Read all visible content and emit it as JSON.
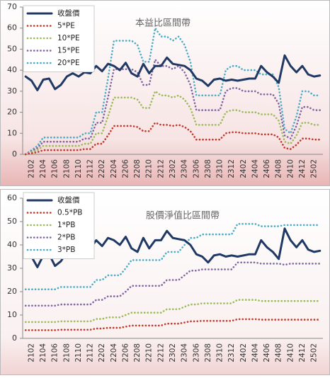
{
  "chart_data": [
    {
      "type": "line",
      "title": "本益比區間帶",
      "grid": false,
      "categories": [
        null,
        "2102",
        null,
        "2104",
        null,
        "2106",
        null,
        "2108",
        null,
        "2110",
        null,
        "2112",
        null,
        "2202",
        null,
        "2204",
        null,
        "2206",
        null,
        "2208",
        null,
        "2210",
        null,
        "2212",
        null,
        "2302",
        null,
        "2304",
        null,
        "2306",
        null,
        "2308",
        null,
        "2310",
        null,
        "2312",
        null,
        "2402",
        null,
        "2404",
        null,
        "2406",
        null,
        "2408",
        null,
        "2410",
        null,
        "2412",
        null,
        "2502",
        null
      ],
      "ylim": [
        0,
        70
      ],
      "yticks": [
        0,
        10,
        20,
        30,
        40,
        50,
        60,
        70
      ],
      "series": [
        {
          "name": "收盤價",
          "color": "#1f3864",
          "values": [
            37,
            35,
            30.5,
            35.5,
            36,
            31,
            33,
            37,
            38.5,
            37,
            39,
            38.5,
            42,
            39.5,
            43,
            42,
            40,
            43.5,
            38.5,
            37,
            43,
            38.5,
            42,
            42,
            46,
            43,
            42.5,
            42,
            40,
            36,
            35,
            32.5,
            35.5,
            36,
            35,
            35.5,
            35,
            35.5,
            36,
            36,
            42,
            39,
            37,
            34,
            47,
            42,
            39,
            42,
            38,
            37,
            37.5
          ]
        },
        {
          "name": "5*PE",
          "color": "#c0392b",
          "values": [
            0,
            0.5,
            1,
            2,
            2,
            2,
            2,
            2,
            2,
            2,
            2.5,
            2.5,
            5,
            5,
            9,
            13.5,
            13.5,
            13.5,
            13.5,
            13,
            11,
            11,
            15,
            14,
            14,
            13.5,
            14,
            13,
            11,
            7,
            7,
            7,
            7,
            7,
            10,
            10.5,
            10.5,
            10,
            10,
            10,
            9.5,
            9.5,
            9.5,
            8,
            3,
            2.5,
            4.5,
            7.5,
            7.5,
            7,
            7
          ]
        },
        {
          "name": "10*PE",
          "color": "#9bbb59",
          "values": [
            0,
            1,
            2,
            4,
            4,
            4,
            4,
            4,
            4,
            4,
            5,
            5,
            10,
            10,
            18,
            27,
            27,
            27,
            27,
            26,
            22,
            22,
            30,
            28,
            28,
            27,
            28,
            26,
            22,
            14,
            14,
            14,
            14,
            14,
            20,
            21,
            21,
            20,
            20,
            20,
            19,
            19,
            19,
            16,
            6,
            5,
            9,
            15,
            15,
            14,
            14
          ]
        },
        {
          "name": "15*PE",
          "color": "#8064a2",
          "values": [
            0,
            1.5,
            3,
            6,
            6,
            6,
            6,
            6,
            6,
            6,
            7.5,
            7.5,
            15,
            15,
            27,
            40.5,
            40.5,
            40.5,
            40.5,
            39,
            33,
            33,
            45,
            42,
            42,
            40.5,
            42,
            39,
            33,
            21,
            21,
            21,
            21,
            21,
            30,
            31.5,
            31.5,
            30,
            30,
            30,
            28.5,
            28.5,
            28.5,
            24,
            9,
            7.5,
            13.5,
            22.5,
            22.5,
            21,
            21
          ]
        },
        {
          "name": "20*PE",
          "color": "#4bacc6",
          "values": [
            0,
            2,
            4,
            8,
            8,
            8,
            8,
            8,
            8,
            8,
            10,
            10,
            20,
            20,
            36,
            54,
            54,
            54,
            54,
            52,
            44,
            44,
            60,
            56,
            56,
            54,
            56,
            52,
            44,
            28,
            28,
            28,
            28,
            28,
            40,
            42,
            42,
            40,
            40,
            40,
            38,
            38,
            38,
            32,
            12,
            10,
            18,
            30,
            30,
            28,
            28
          ]
        }
      ]
    },
    {
      "type": "line",
      "title": "股價淨值比區間帶",
      "grid": false,
      "categories": [
        null,
        "2102",
        null,
        "2104",
        null,
        "2106",
        null,
        "2108",
        null,
        "2110",
        null,
        "2112",
        null,
        "2202",
        null,
        "2204",
        null,
        "2206",
        null,
        "2208",
        null,
        "2210",
        null,
        "2212",
        null,
        "2302",
        null,
        "2304",
        null,
        "2306",
        null,
        "2308",
        null,
        "2310",
        null,
        "2312",
        null,
        "2402",
        null,
        "2404",
        null,
        "2406",
        null,
        "2408",
        null,
        "2410",
        null,
        "2412",
        null,
        "2502",
        null
      ],
      "ylim": [
        0,
        60
      ],
      "yticks": [
        0,
        10,
        20,
        30,
        40,
        50,
        60
      ],
      "series": [
        {
          "name": "收盤價",
          "color": "#1f3864",
          "values": [
            37,
            35,
            30.5,
            35.5,
            36,
            31,
            33,
            37,
            38.5,
            37,
            39,
            38.5,
            42,
            39.5,
            43,
            42,
            40,
            43.5,
            38.5,
            37,
            43,
            38.5,
            42,
            42,
            46,
            43,
            42.5,
            42,
            40,
            36,
            35,
            32.5,
            35.5,
            36,
            35,
            35.5,
            35,
            35.5,
            36,
            36,
            42,
            39,
            37,
            34,
            47,
            42,
            39,
            42,
            38,
            37,
            37.5
          ]
        },
        {
          "name": "0.5*PB",
          "color": "#c0392b",
          "values": [
            3.5,
            3.5,
            3.5,
            3.5,
            3.5,
            3.5,
            3.7,
            3.7,
            3.7,
            3.7,
            3.7,
            3.7,
            4.2,
            4.2,
            4.5,
            4.5,
            4.5,
            5,
            5.5,
            5.5,
            5.5,
            5.5,
            5.5,
            5.5,
            6.3,
            6.3,
            6.3,
            6.8,
            7.3,
            7.3,
            7.5,
            7.5,
            7.5,
            7.5,
            7.5,
            7.5,
            8.2,
            8.2,
            8.2,
            8.2,
            8,
            8,
            8,
            8,
            8,
            8,
            8,
            8,
            8,
            8,
            8
          ]
        },
        {
          "name": "1*PB",
          "color": "#9bbb59",
          "values": [
            7,
            7,
            7,
            7,
            7,
            7,
            7.3,
            7.3,
            7.3,
            7.3,
            7.3,
            7.3,
            8.3,
            8.3,
            9,
            9,
            9,
            10,
            11,
            11,
            11,
            11,
            11,
            11,
            12.5,
            12.5,
            12.5,
            13.5,
            14.5,
            14.5,
            15,
            15,
            15,
            15,
            15,
            15,
            16.5,
            16.5,
            16.5,
            16.5,
            16,
            16,
            16,
            16,
            16,
            16,
            16,
            16,
            16,
            16,
            16
          ]
        },
        {
          "name": "2*PB",
          "color": "#8064a2",
          "values": [
            14,
            14,
            14,
            14,
            14,
            14,
            14.5,
            14.5,
            14.5,
            14.5,
            14.5,
            14.5,
            16.5,
            16.5,
            18,
            18,
            18,
            20,
            22.5,
            22.5,
            22.5,
            22.5,
            22.5,
            22.5,
            25,
            25,
            25,
            27,
            29,
            29,
            29.5,
            29.5,
            29.5,
            29.5,
            29.5,
            29.5,
            32.5,
            32.5,
            32.5,
            32.5,
            32,
            32,
            32,
            32,
            31.5,
            32,
            32,
            32,
            32,
            32,
            32
          ]
        },
        {
          "name": "3*PB",
          "color": "#4bacc6",
          "values": [
            21,
            21,
            21,
            21,
            21,
            21,
            22,
            22,
            22,
            22,
            22,
            22,
            25,
            25,
            27,
            27,
            27,
            30,
            33.5,
            33.5,
            33.5,
            33.5,
            33.5,
            33.5,
            37,
            37,
            37,
            40,
            43,
            43,
            44.5,
            44.5,
            44.5,
            44.5,
            44.5,
            44.5,
            49,
            49,
            49,
            49,
            48,
            48,
            48,
            48,
            48.5,
            48.5,
            48.5,
            48.5,
            48.5,
            48.5,
            48.5
          ]
        }
      ]
    }
  ]
}
